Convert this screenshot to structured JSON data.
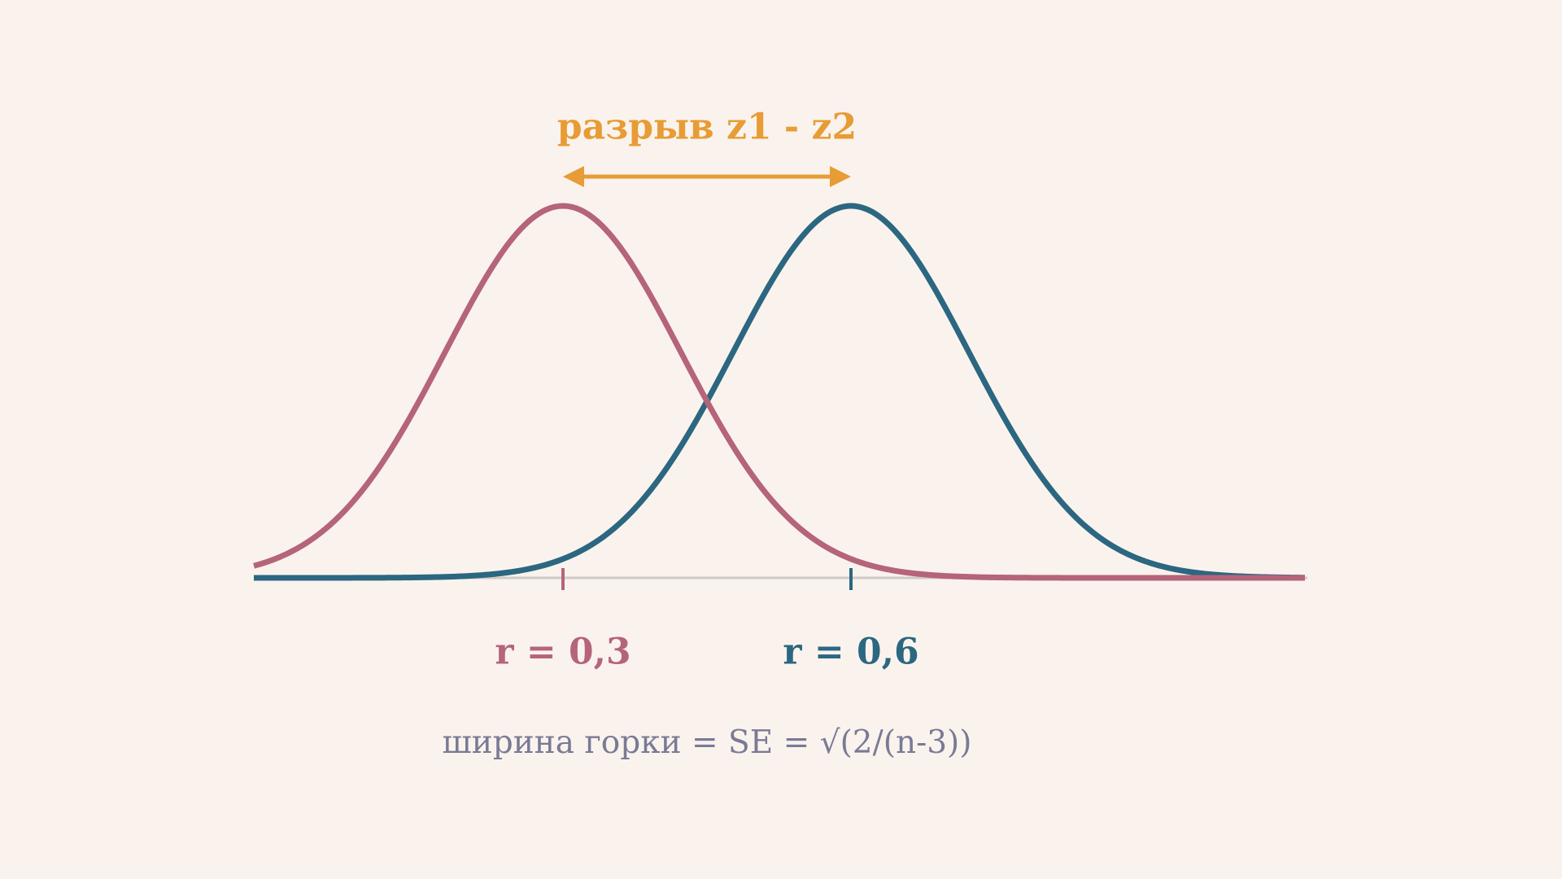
{
  "title": "разрыв z1 - z2",
  "labels": [
    "r = 0,3",
    "r = 0,6"
  ],
  "formula": "ширина горки = SE = √(2/(n-3))"
}
